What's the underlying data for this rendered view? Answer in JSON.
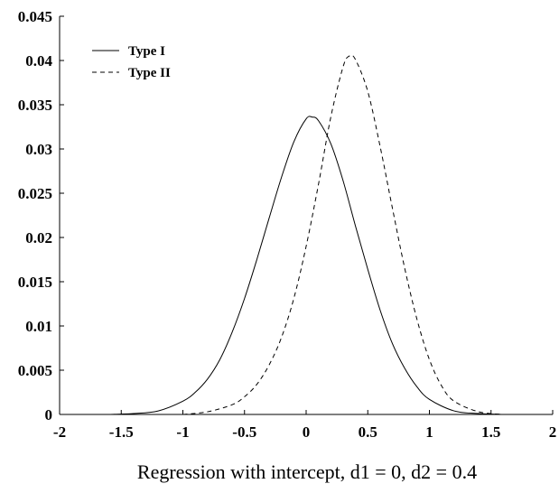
{
  "chart_data": {
    "type": "line",
    "title": "",
    "xlabel": "Regression with intercept, d1 = 0, d2 = 0.4",
    "ylabel": "",
    "xlim": [
      -2,
      2
    ],
    "ylim": [
      0,
      0.045
    ],
    "xticks": [
      -2,
      -1.5,
      -1,
      -0.5,
      0,
      0.5,
      1,
      1.5,
      2
    ],
    "xtick_labels": [
      "-2",
      "-1.5",
      "-1",
      "-0.5",
      "0",
      "0.5",
      "1",
      "1.5",
      "2"
    ],
    "yticks": [
      0,
      0.005,
      0.01,
      0.015,
      0.02,
      0.025,
      0.03,
      0.035,
      0.04,
      0.045
    ],
    "ytick_labels": [
      "0",
      "0.005",
      "0.01",
      "0.015",
      "0.02",
      "0.025",
      "0.03",
      "0.035",
      "0.04",
      "0.045"
    ],
    "grid": false,
    "legend_position": "top-left",
    "series": [
      {
        "name": "Type I",
        "line_style": "solid",
        "color": "#000000",
        "x": [
          -1.6,
          -1.4,
          -1.2,
          -1.0,
          -0.9,
          -0.8,
          -0.7,
          -0.6,
          -0.5,
          -0.4,
          -0.3,
          -0.2,
          -0.1,
          0.0,
          0.05,
          0.1,
          0.2,
          0.3,
          0.4,
          0.5,
          0.6,
          0.7,
          0.8,
          0.9,
          1.0,
          1.2,
          1.4,
          1.6
        ],
        "y": [
          0.0,
          0.0001,
          0.0004,
          0.0015,
          0.0025,
          0.004,
          0.0062,
          0.0093,
          0.0131,
          0.0175,
          0.0222,
          0.0268,
          0.0308,
          0.0334,
          0.0336,
          0.0332,
          0.0306,
          0.0264,
          0.0213,
          0.0164,
          0.0118,
          0.008,
          0.0052,
          0.0031,
          0.0017,
          0.0004,
          0.0001,
          0.0
        ]
      },
      {
        "name": "Type II",
        "line_style": "dashed",
        "color": "#000000",
        "x": [
          -1.0,
          -0.8,
          -0.6,
          -0.5,
          -0.4,
          -0.3,
          -0.2,
          -0.1,
          0.0,
          0.1,
          0.2,
          0.3,
          0.35,
          0.4,
          0.5,
          0.6,
          0.7,
          0.8,
          0.9,
          1.0,
          1.1,
          1.2,
          1.4,
          1.6
        ],
        "y": [
          0.0,
          0.0003,
          0.0011,
          0.002,
          0.0034,
          0.0056,
          0.0087,
          0.0131,
          0.019,
          0.026,
          0.0336,
          0.0393,
          0.0405,
          0.0401,
          0.0365,
          0.0303,
          0.0233,
          0.0165,
          0.0107,
          0.0062,
          0.0032,
          0.0015,
          0.0003,
          0.0
        ]
      }
    ]
  }
}
